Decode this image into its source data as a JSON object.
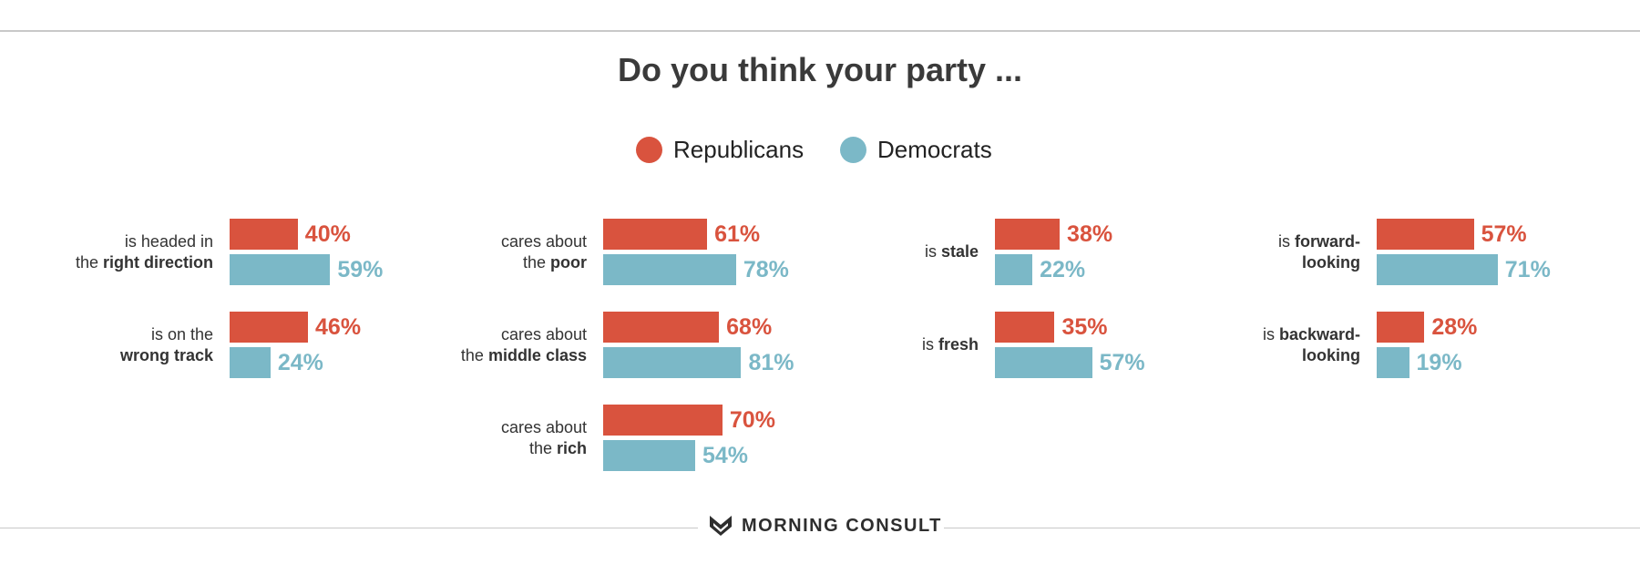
{
  "title": "Do you think your party ...",
  "legend": [
    {
      "label": "Republicans",
      "color": "#d9533e"
    },
    {
      "label": "Democrats",
      "color": "#7bb8c7"
    }
  ],
  "footer": {
    "brand": "MORNING CONSULT",
    "icon": "morning-consult-logo-icon"
  },
  "chart_data": {
    "type": "bar",
    "orientation": "horizontal",
    "title": "Do you think your party ...",
    "unit": "%",
    "series_colors": {
      "Republicans": "#d9533e",
      "Democrats": "#7bb8c7"
    },
    "panels": [
      {
        "rows": [
          {
            "label_parts": [
              {
                "text": "is headed in",
                "bold": false
              },
              {
                "text": "the ",
                "bold": false,
                "newline": true
              },
              {
                "text": "right direction",
                "bold": true
              }
            ],
            "republicans": 40,
            "democrats": 59
          },
          {
            "label_parts": [
              {
                "text": "is on the",
                "bold": false
              },
              {
                "text": "wrong track",
                "bold": true,
                "newline": true
              }
            ],
            "republicans": 46,
            "democrats": 24
          }
        ]
      },
      {
        "rows": [
          {
            "label_parts": [
              {
                "text": "cares about",
                "bold": false
              },
              {
                "text": "the ",
                "bold": false,
                "newline": true
              },
              {
                "text": "poor",
                "bold": true
              }
            ],
            "republicans": 61,
            "democrats": 78
          },
          {
            "label_parts": [
              {
                "text": "cares about",
                "bold": false
              },
              {
                "text": "the ",
                "bold": false,
                "newline": true
              },
              {
                "text": "middle class",
                "bold": true
              }
            ],
            "republicans": 68,
            "democrats": 81
          },
          {
            "label_parts": [
              {
                "text": "cares about",
                "bold": false
              },
              {
                "text": "the ",
                "bold": false,
                "newline": true
              },
              {
                "text": "rich",
                "bold": true
              }
            ],
            "republicans": 70,
            "democrats": 54
          }
        ]
      },
      {
        "rows": [
          {
            "label_parts": [
              {
                "text": "is ",
                "bold": false
              },
              {
                "text": "stale",
                "bold": true
              }
            ],
            "republicans": 38,
            "democrats": 22
          },
          {
            "label_parts": [
              {
                "text": "is ",
                "bold": false
              },
              {
                "text": "fresh",
                "bold": true
              }
            ],
            "republicans": 35,
            "democrats": 57
          }
        ]
      },
      {
        "rows": [
          {
            "label_parts": [
              {
                "text": "is ",
                "bold": false
              },
              {
                "text": "forward-",
                "bold": true
              },
              {
                "text": "looking",
                "bold": true,
                "newline": true
              }
            ],
            "republicans": 57,
            "democrats": 71
          },
          {
            "label_parts": [
              {
                "text": "is ",
                "bold": false
              },
              {
                "text": "backward-",
                "bold": true
              },
              {
                "text": "looking",
                "bold": true,
                "newline": true
              }
            ],
            "republicans": 28,
            "democrats": 19
          }
        ]
      }
    ]
  }
}
